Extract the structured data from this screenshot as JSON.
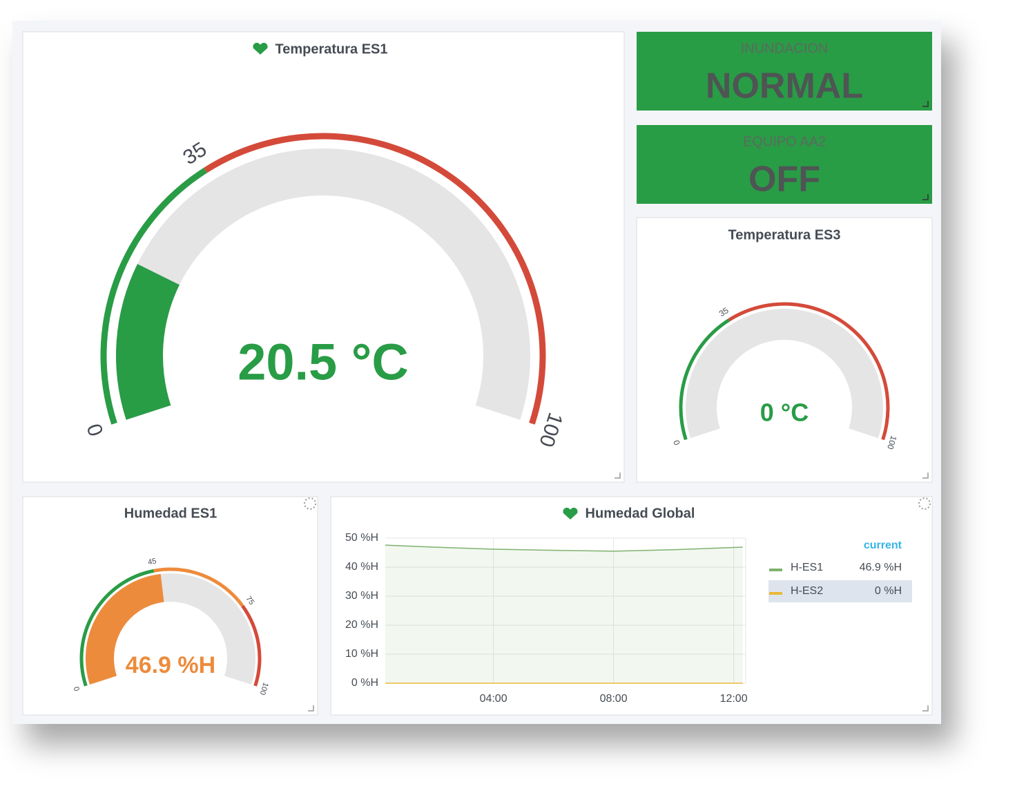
{
  "gauges": [
    {
      "title": "Temperatura ES1",
      "value": 20.5,
      "value_label": "20.5 °C",
      "min": 0,
      "max": 100,
      "thresholds": [
        35
      ],
      "colors": [
        "#299c46",
        "#d44a3a"
      ],
      "ticks": [
        0,
        35,
        100
      ]
    },
    {
      "title": "Temperatura ES3",
      "value": 0,
      "value_label": "0 °C",
      "min": 0,
      "max": 100,
      "thresholds": [
        35
      ],
      "colors": [
        "#299c46",
        "#d44a3a"
      ],
      "ticks": [
        0,
        35,
        100
      ]
    },
    {
      "title": "Humedad ES1",
      "value": 46.9,
      "value_label": "46.9 %H",
      "min": 0,
      "max": 100,
      "thresholds": [
        45,
        75
      ],
      "colors": [
        "#299c46",
        "#ed8b3c",
        "#d44a3a"
      ],
      "ticks": [
        0,
        45,
        75,
        100
      ]
    }
  ],
  "status_panels": [
    {
      "title": "INUNDACION",
      "value": "NORMAL",
      "color": "#299c46"
    },
    {
      "title": "EQUIPO AA2",
      "value": "OFF",
      "color": "#299c46"
    }
  ],
  "chart_data": {
    "type": "line",
    "title": "Humedad Global",
    "x": [
      0.4,
      2,
      4,
      6,
      8,
      10,
      12.3
    ],
    "xlim": [
      0.4,
      12.4
    ],
    "xticks": [
      {
        "value": 4,
        "label": "04:00"
      },
      {
        "value": 8,
        "label": "08:00"
      },
      {
        "value": 12,
        "label": "12:00"
      }
    ],
    "ylim": [
      0,
      50
    ],
    "yticks": [
      {
        "value": 0,
        "label": "0 %H"
      },
      {
        "value": 10,
        "label": "10 %H"
      },
      {
        "value": 20,
        "label": "20 %H"
      },
      {
        "value": 30,
        "label": "30 %H"
      },
      {
        "value": 40,
        "label": "40 %H"
      },
      {
        "value": 50,
        "label": "50 %H"
      }
    ],
    "grid": true,
    "legend_header": "current",
    "series": [
      {
        "name": "H-ES1",
        "color": "#7eb26d",
        "values": [
          47.6,
          46.9,
          46.2,
          45.8,
          45.5,
          46.0,
          46.9
        ],
        "current_label": "46.9 %H"
      },
      {
        "name": "H-ES2",
        "color": "#eab839",
        "values": [
          0,
          0,
          0,
          0,
          0,
          0,
          0
        ],
        "current_label": "0 %H"
      }
    ]
  }
}
